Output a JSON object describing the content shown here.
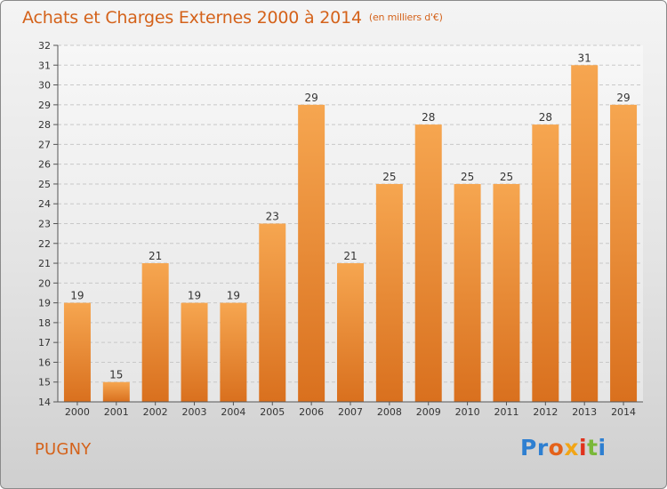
{
  "header": {
    "title": "Achats et Charges Externes 2000 à 2014",
    "subtitle": "(en milliers d'€)"
  },
  "commune": "PUGNY",
  "logo": {
    "parts": [
      "Pr",
      "o",
      "x",
      "i",
      "t",
      "i"
    ],
    "colors": [
      "#2e7fd1",
      "#e4621a",
      "#f2a516",
      "#e0321c",
      "#7ab83a",
      "#2e7fd1"
    ]
  },
  "colors": {
    "bar_top": "#f6a650",
    "bar_bottom": "#d9701e",
    "title": "#d4621a",
    "grid": "#c8c8c8"
  },
  "chart_data": {
    "type": "bar",
    "categories": [
      "2000",
      "2001",
      "2002",
      "2003",
      "2004",
      "2005",
      "2006",
      "2007",
      "2008",
      "2009",
      "2010",
      "2011",
      "2012",
      "2013",
      "2014"
    ],
    "values": [
      19,
      15,
      21,
      19,
      19,
      23,
      29,
      21,
      25,
      28,
      25,
      25,
      28,
      31,
      29
    ],
    "value_labels": [
      "19",
      "15",
      "21",
      "19",
      "19",
      "23",
      "29",
      "21",
      "25",
      "28",
      "25",
      "25",
      "28",
      "31",
      "29"
    ],
    "y_ticks": [
      "14",
      "15",
      "16",
      "17",
      "18",
      "19",
      "20",
      "21",
      "22",
      "23",
      "24",
      "25",
      "26",
      "27",
      "28",
      "29",
      "30",
      "31",
      "32"
    ],
    "ylim": [
      14,
      32
    ],
    "grid": true,
    "legend": "none"
  }
}
